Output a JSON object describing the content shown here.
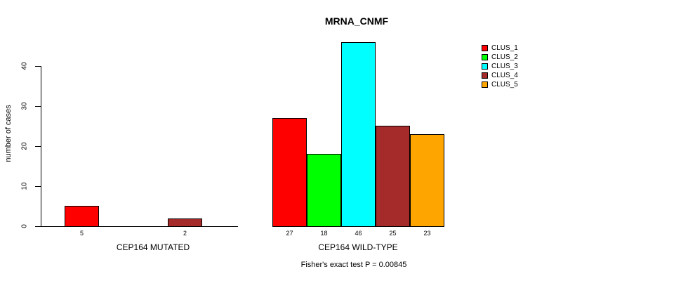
{
  "chart_data": {
    "type": "bar",
    "title": "MRNA_CNMF",
    "ylabel": "number of cases",
    "xlabel": "",
    "yticks": [
      0,
      10,
      20,
      30,
      40
    ],
    "ylim": [
      0,
      46
    ],
    "grid": false,
    "legend_position": "top-right",
    "categories": [
      "CLUS_1",
      "CLUS_2",
      "CLUS_3",
      "CLUS_4",
      "CLUS_5"
    ],
    "colors": [
      "#FF0000",
      "#00FF00",
      "#00FFFF",
      "#A52A2A",
      "#FFA500"
    ],
    "groups": [
      {
        "label": "CEP164 MUTATED",
        "values": [
          5,
          0,
          0,
          2,
          0
        ]
      },
      {
        "label": "CEP164 WILD-TYPE",
        "values": [
          27,
          18,
          46,
          25,
          23
        ]
      }
    ],
    "annotation": "Fisher's exact test P = 0.00845",
    "legend_entries": [
      {
        "label": "CLUS_1",
        "color": "#FF0000"
      },
      {
        "label": "CLUS_2",
        "color": "#00FF00"
      },
      {
        "label": "CLUS_3",
        "color": "#00FFFF"
      },
      {
        "label": "CLUS_4",
        "color": "#A52A2A"
      },
      {
        "label": "CLUS_5",
        "color": "#FFA500"
      }
    ]
  }
}
